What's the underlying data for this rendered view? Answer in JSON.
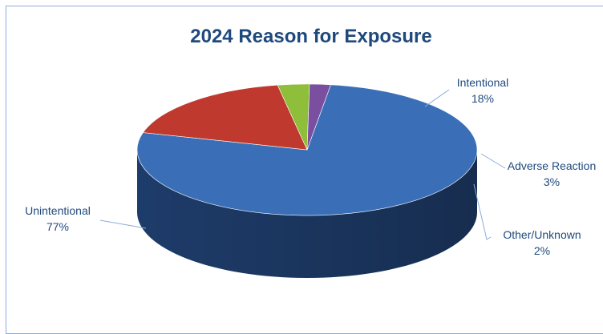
{
  "chart_data": {
    "type": "pie",
    "title": "2024 Reason for Exposure",
    "slices": [
      {
        "label": "Unintentional",
        "value": 77,
        "pct_label": "77%",
        "color": "#3a6fb8",
        "side": "#1e3c6a"
      },
      {
        "label": "Intentional",
        "value": 18,
        "pct_label": "18%",
        "color": "#c0392f",
        "side": "#7a1f1a"
      },
      {
        "label": "Adverse Reaction",
        "value": 3,
        "pct_label": "3%",
        "color": "#8fbe3a",
        "side": "#5a7a22"
      },
      {
        "label": "Other/Unknown",
        "value": 2,
        "pct_label": "2%",
        "color": "#7a4fa0",
        "side": "#4a2d66"
      }
    ],
    "three_d": true,
    "legend": "none",
    "data_labels": "outside-with-leader-lines"
  },
  "colors": {
    "title": "#1f497d",
    "label_text": "#1f497d",
    "border": "#8eaadb",
    "leader_line": "#8eaadb"
  }
}
